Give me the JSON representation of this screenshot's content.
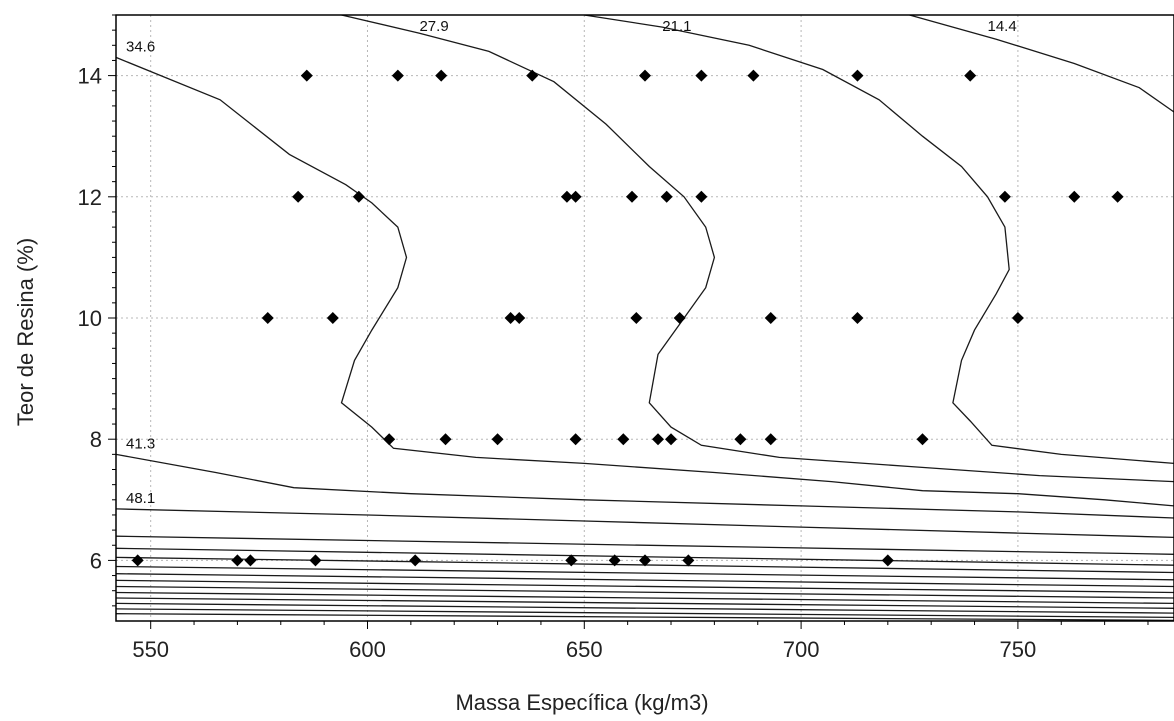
{
  "chart_data": {
    "type": "contour",
    "xlabel": "Massa Específica (kg/m3)",
    "ylabel": "Teor de Resina (%)",
    "xlim": [
      542,
      786
    ],
    "ylim": [
      5.0,
      15.0
    ],
    "x_ticks": [
      550,
      600,
      650,
      700,
      750
    ],
    "y_ticks": [
      6,
      8,
      10,
      12,
      14
    ],
    "x_tick_labels": [
      "550",
      "600",
      "650",
      "700",
      "750"
    ],
    "y_tick_labels": [
      "6",
      "8",
      "10",
      "12",
      "14"
    ],
    "grid": true,
    "contours": [
      {
        "label": "34.6",
        "points": [
          [
            542,
            14.3
          ],
          [
            566,
            13.6
          ],
          [
            582,
            12.7
          ],
          [
            595,
            12.2
          ],
          [
            601,
            11.9
          ],
          [
            607,
            11.5
          ],
          [
            609,
            11.0
          ],
          [
            607,
            10.5
          ],
          [
            601,
            9.8
          ],
          [
            597,
            9.3
          ],
          [
            594,
            8.6
          ],
          [
            601,
            8.2
          ],
          [
            606,
            7.85
          ],
          [
            625,
            7.7
          ],
          [
            650,
            7.6
          ],
          [
            680,
            7.45
          ],
          [
            707,
            7.3
          ],
          [
            728,
            7.15
          ],
          [
            750,
            7.1
          ],
          [
            770,
            7.0
          ],
          [
            786,
            6.9
          ]
        ]
      },
      {
        "label": "27.9",
        "points": [
          [
            594,
            15.0
          ],
          [
            612,
            14.7
          ],
          [
            628,
            14.4
          ],
          [
            643,
            13.9
          ],
          [
            655,
            13.2
          ],
          [
            665,
            12.5
          ],
          [
            673,
            12.0
          ],
          [
            678,
            11.5
          ],
          [
            680,
            11.0
          ],
          [
            678,
            10.5
          ],
          [
            672,
            9.9
          ],
          [
            667,
            9.4
          ],
          [
            665,
            8.6
          ],
          [
            670,
            8.2
          ],
          [
            677,
            7.9
          ],
          [
            695,
            7.7
          ],
          [
            725,
            7.55
          ],
          [
            755,
            7.4
          ],
          [
            786,
            7.3
          ]
        ]
      },
      {
        "label": "21.1",
        "points": [
          [
            650,
            15.0
          ],
          [
            668,
            14.8
          ],
          [
            688,
            14.5
          ],
          [
            705,
            14.1
          ],
          [
            718,
            13.6
          ],
          [
            728,
            13.0
          ],
          [
            737,
            12.5
          ],
          [
            743,
            12.0
          ],
          [
            747,
            11.5
          ],
          [
            748,
            10.8
          ],
          [
            745,
            10.4
          ],
          [
            740,
            9.8
          ],
          [
            737,
            9.3
          ],
          [
            735,
            8.6
          ],
          [
            739,
            8.3
          ],
          [
            744,
            7.9
          ],
          [
            760,
            7.75
          ],
          [
            786,
            7.6
          ]
        ]
      },
      {
        "label": "14.4",
        "points": [
          [
            725,
            15.0
          ],
          [
            745,
            14.6
          ],
          [
            763,
            14.2
          ],
          [
            778,
            13.8
          ],
          [
            786,
            13.4
          ]
        ]
      },
      {
        "label": "41.3",
        "points": [
          [
            542,
            7.75
          ],
          [
            565,
            7.45
          ],
          [
            583,
            7.2
          ],
          [
            610,
            7.1
          ],
          [
            650,
            7.0
          ],
          [
            700,
            6.9
          ],
          [
            750,
            6.8
          ],
          [
            786,
            6.7
          ]
        ]
      },
      {
        "label": "48.1",
        "points": [
          [
            542,
            6.85
          ],
          [
            600,
            6.75
          ],
          [
            650,
            6.65
          ],
          [
            700,
            6.55
          ],
          [
            750,
            6.45
          ],
          [
            786,
            6.38
          ]
        ]
      },
      {
        "label": "",
        "points": [
          [
            542,
            6.4
          ],
          [
            786,
            6.1
          ]
        ]
      },
      {
        "label": "",
        "points": [
          [
            542,
            6.2
          ],
          [
            786,
            5.92
          ]
        ]
      },
      {
        "label": "",
        "points": [
          [
            542,
            6.05
          ],
          [
            786,
            5.8
          ]
        ]
      },
      {
        "label": "",
        "points": [
          [
            542,
            5.9
          ],
          [
            786,
            5.68
          ]
        ]
      },
      {
        "label": "",
        "points": [
          [
            542,
            5.78
          ],
          [
            786,
            5.57
          ]
        ]
      },
      {
        "label": "",
        "points": [
          [
            542,
            5.67
          ],
          [
            786,
            5.47
          ]
        ]
      },
      {
        "label": "",
        "points": [
          [
            542,
            5.57
          ],
          [
            786,
            5.38
          ]
        ]
      },
      {
        "label": "",
        "points": [
          [
            542,
            5.47
          ],
          [
            786,
            5.29
          ]
        ]
      },
      {
        "label": "",
        "points": [
          [
            542,
            5.38
          ],
          [
            786,
            5.21
          ]
        ]
      },
      {
        "label": "",
        "points": [
          [
            542,
            5.29
          ],
          [
            786,
            5.13
          ]
        ]
      },
      {
        "label": "",
        "points": [
          [
            542,
            5.2
          ],
          [
            786,
            5.06
          ]
        ]
      },
      {
        "label": "",
        "points": [
          [
            542,
            5.12
          ],
          [
            786,
            5.01
          ]
        ]
      }
    ],
    "points": [
      [
        586,
        14
      ],
      [
        607,
        14
      ],
      [
        617,
        14
      ],
      [
        638,
        14
      ],
      [
        664,
        14
      ],
      [
        677,
        14
      ],
      [
        689,
        14
      ],
      [
        713,
        14
      ],
      [
        739,
        14
      ],
      [
        584,
        12
      ],
      [
        598,
        12
      ],
      [
        646,
        12
      ],
      [
        648,
        12
      ],
      [
        661,
        12
      ],
      [
        669,
        12
      ],
      [
        677,
        12
      ],
      [
        747,
        12
      ],
      [
        763,
        12
      ],
      [
        773,
        12
      ],
      [
        577,
        10
      ],
      [
        592,
        10
      ],
      [
        633,
        10
      ],
      [
        635,
        10
      ],
      [
        662,
        10
      ],
      [
        672,
        10
      ],
      [
        693,
        10
      ],
      [
        713,
        10
      ],
      [
        750,
        10
      ],
      [
        605,
        8
      ],
      [
        618,
        8
      ],
      [
        630,
        8
      ],
      [
        648,
        8
      ],
      [
        659,
        8
      ],
      [
        667,
        8
      ],
      [
        670,
        8
      ],
      [
        686,
        8
      ],
      [
        693,
        8
      ],
      [
        728,
        8
      ],
      [
        547,
        6
      ],
      [
        570,
        6
      ],
      [
        573,
        6
      ],
      [
        588,
        6
      ],
      [
        611,
        6
      ],
      [
        647,
        6
      ],
      [
        657,
        6
      ],
      [
        664,
        6
      ],
      [
        674,
        6
      ],
      [
        720,
        6
      ]
    ]
  }
}
